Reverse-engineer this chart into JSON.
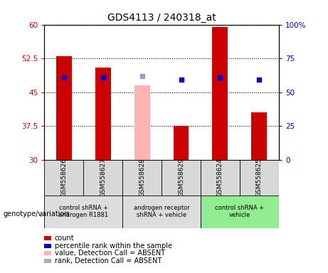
{
  "title": "GDS4113 / 240318_at",
  "samples": [
    "GSM558626",
    "GSM558627",
    "GSM558628",
    "GSM558629",
    "GSM558624",
    "GSM558625"
  ],
  "bar_values": [
    53.0,
    50.5,
    46.5,
    37.5,
    59.5,
    40.5
  ],
  "bar_colors": [
    "#cc0000",
    "#cc0000",
    "#ffb3b3",
    "#cc0000",
    "#cc0000",
    "#cc0000"
  ],
  "dot_values": [
    48.2,
    48.2,
    48.5,
    47.8,
    48.2,
    47.8
  ],
  "dot_colors": [
    "#0000cc",
    "#0000cc",
    "#9999cc",
    "#0000cc",
    "#0000cc",
    "#0000cc"
  ],
  "ylim_left": [
    30,
    60
  ],
  "ylim_right": [
    0,
    100
  ],
  "yticks_left": [
    30,
    37.5,
    45,
    52.5,
    60
  ],
  "yticks_right": [
    0,
    25,
    50,
    75,
    100
  ],
  "ytick_labels_left": [
    "30",
    "37.5",
    "45",
    "52.5",
    "60"
  ],
  "ytick_labels_right": [
    "0",
    "25",
    "50",
    "75",
    "100%"
  ],
  "bar_bottom": 30,
  "group_labels": [
    "control shRNA +\nandrogen R1881",
    "androgen receptor\nshRNA + vehicle",
    "control shRNA +\nvehicle"
  ],
  "group_ranges": [
    [
      0,
      1
    ],
    [
      2,
      3
    ],
    [
      4,
      5
    ]
  ],
  "group_colors": [
    "#dddddd",
    "#dddddd",
    "#90ee90"
  ],
  "genotype_label": "genotype/variation",
  "legend_items": [
    {
      "color": "#cc0000",
      "label": "count"
    },
    {
      "color": "#0000cc",
      "label": "percentile rank within the sample"
    },
    {
      "color": "#ffb3b3",
      "label": "value, Detection Call = ABSENT"
    },
    {
      "color": "#aaaacc",
      "label": "rank, Detection Call = ABSENT"
    }
  ]
}
